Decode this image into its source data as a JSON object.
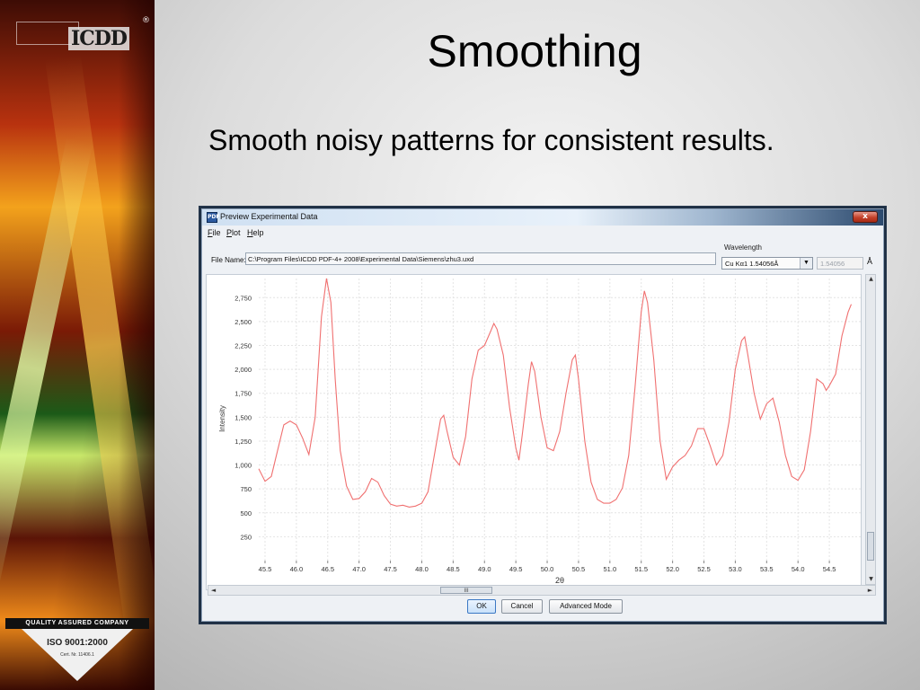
{
  "slide": {
    "title": "Smoothing",
    "subtitle": "Smooth noisy patterns for consistent results.",
    "logo_text": "ICDD",
    "logo_reg": "®",
    "iso_top": "QUALITY ASSURED COMPANY",
    "iso_title": "ISO 9001:2000",
    "iso_cert": "Cert. Nr. 11406.1"
  },
  "window": {
    "title": "Preview Experimental Data",
    "icon_text": "PDF",
    "close_symbol": "x"
  },
  "menu": [
    "File",
    "Plot",
    "Help"
  ],
  "form": {
    "file_label": "File Name:",
    "file_value": "C:\\Program Files\\ICDD PDF-4+ 2008\\Experimental Data\\Siemens\\zhu3.uxd",
    "wavelength_label": "Wavelength",
    "wavelength_selected": "Cu Kα1 1.54056Å",
    "wavelength_value": "1.54056",
    "wavelength_unit": "Å"
  },
  "scroll": {
    "hthumb_grip": "III",
    "up": "▲",
    "down": "▼",
    "left": "◄",
    "right": "►",
    "caret": "▼"
  },
  "buttons": {
    "ok": "OK",
    "cancel": "Cancel",
    "advanced": "Advanced Mode"
  },
  "colors": {
    "line": "#f07070",
    "grid": "#e4e4e4"
  },
  "chart_data": {
    "type": "line",
    "title": "",
    "xlabel": "2θ",
    "ylabel": "Intensity",
    "xlim": [
      45.4,
      55.0
    ],
    "ylim": [
      0,
      2950
    ],
    "x_ticks": [
      45.5,
      46.0,
      46.5,
      47.0,
      47.5,
      48.0,
      48.5,
      49.0,
      49.5,
      50.0,
      50.5,
      51.0,
      51.5,
      52.0,
      52.5,
      53.0,
      53.5,
      54.0,
      54.5
    ],
    "x_tick_labels": [
      "45.5",
      "46.0",
      "46.5",
      "47.0",
      "47.5",
      "48.0",
      "48.5",
      "49.0",
      "49.5",
      "50.0",
      "50.5",
      "51.0",
      "51.5",
      "52.0",
      "52.5",
      "53.0",
      "53.5",
      "54.0",
      "54.5"
    ],
    "y_ticks": [
      250,
      500,
      750,
      1000,
      1250,
      1500,
      1750,
      2000,
      2250,
      2500,
      2750
    ],
    "y_tick_labels": [
      "250",
      "500",
      "750",
      "1,000",
      "1,250",
      "1,500",
      "1,750",
      "2,000",
      "2,250",
      "2,500",
      "2,750"
    ],
    "grid": true,
    "series": [
      {
        "points": [
          [
            45.4,
            960
          ],
          [
            45.5,
            830
          ],
          [
            45.6,
            880
          ],
          [
            45.7,
            1150
          ],
          [
            45.8,
            1420
          ],
          [
            45.9,
            1460
          ],
          [
            46.0,
            1420
          ],
          [
            46.1,
            1280
          ],
          [
            46.2,
            1110
          ],
          [
            46.3,
            1500
          ],
          [
            46.4,
            2550
          ],
          [
            46.48,
            2950
          ],
          [
            46.55,
            2700
          ],
          [
            46.62,
            1900
          ],
          [
            46.7,
            1150
          ],
          [
            46.8,
            780
          ],
          [
            46.9,
            640
          ],
          [
            47.0,
            650
          ],
          [
            47.1,
            720
          ],
          [
            47.2,
            860
          ],
          [
            47.3,
            820
          ],
          [
            47.4,
            680
          ],
          [
            47.5,
            590
          ],
          [
            47.6,
            570
          ],
          [
            47.7,
            580
          ],
          [
            47.8,
            560
          ],
          [
            47.9,
            570
          ],
          [
            48.0,
            600
          ],
          [
            48.1,
            720
          ],
          [
            48.2,
            1100
          ],
          [
            48.3,
            1480
          ],
          [
            48.35,
            1520
          ],
          [
            48.4,
            1360
          ],
          [
            48.5,
            1080
          ],
          [
            48.6,
            1000
          ],
          [
            48.7,
            1300
          ],
          [
            48.8,
            1900
          ],
          [
            48.9,
            2200
          ],
          [
            49.0,
            2250
          ],
          [
            49.1,
            2400
          ],
          [
            49.15,
            2480
          ],
          [
            49.2,
            2420
          ],
          [
            49.3,
            2150
          ],
          [
            49.4,
            1600
          ],
          [
            49.5,
            1180
          ],
          [
            49.55,
            1050
          ],
          [
            49.6,
            1300
          ],
          [
            49.7,
            1850
          ],
          [
            49.75,
            2080
          ],
          [
            49.8,
            1980
          ],
          [
            49.9,
            1500
          ],
          [
            50.0,
            1180
          ],
          [
            50.1,
            1150
          ],
          [
            50.2,
            1350
          ],
          [
            50.3,
            1750
          ],
          [
            50.4,
            2100
          ],
          [
            50.45,
            2150
          ],
          [
            50.5,
            1900
          ],
          [
            50.6,
            1250
          ],
          [
            50.7,
            820
          ],
          [
            50.8,
            640
          ],
          [
            50.9,
            600
          ],
          [
            51.0,
            600
          ],
          [
            51.1,
            640
          ],
          [
            51.2,
            760
          ],
          [
            51.3,
            1100
          ],
          [
            51.4,
            1800
          ],
          [
            51.5,
            2600
          ],
          [
            51.55,
            2820
          ],
          [
            51.6,
            2700
          ],
          [
            51.7,
            2100
          ],
          [
            51.8,
            1250
          ],
          [
            51.9,
            850
          ],
          [
            52.0,
            980
          ],
          [
            52.1,
            1050
          ],
          [
            52.2,
            1100
          ],
          [
            52.3,
            1200
          ],
          [
            52.4,
            1380
          ],
          [
            52.5,
            1380
          ],
          [
            52.6,
            1200
          ],
          [
            52.7,
            1000
          ],
          [
            52.8,
            1100
          ],
          [
            52.9,
            1450
          ],
          [
            53.0,
            2000
          ],
          [
            53.1,
            2300
          ],
          [
            53.15,
            2340
          ],
          [
            53.2,
            2150
          ],
          [
            53.3,
            1750
          ],
          [
            53.4,
            1480
          ],
          [
            53.5,
            1640
          ],
          [
            53.6,
            1700
          ],
          [
            53.7,
            1450
          ],
          [
            53.8,
            1100
          ],
          [
            53.9,
            880
          ],
          [
            54.0,
            840
          ],
          [
            54.1,
            950
          ],
          [
            54.2,
            1350
          ],
          [
            54.3,
            1900
          ],
          [
            54.4,
            1850
          ],
          [
            54.45,
            1780
          ],
          [
            54.5,
            1830
          ],
          [
            54.6,
            1950
          ],
          [
            54.7,
            2350
          ],
          [
            54.8,
            2600
          ],
          [
            54.85,
            2680
          ]
        ]
      }
    ]
  }
}
